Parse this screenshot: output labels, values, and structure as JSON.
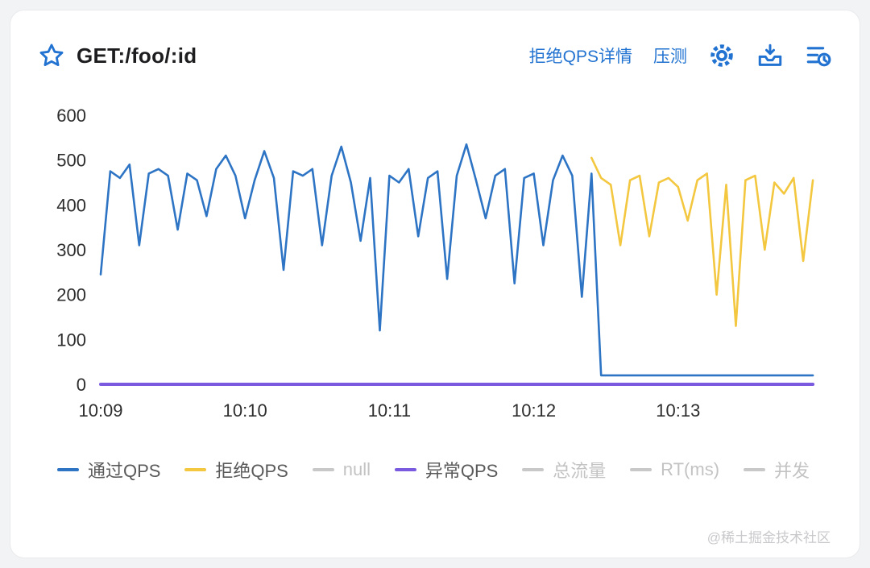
{
  "header": {
    "title": "GET:/foo/:id",
    "actions": [
      {
        "key": "reject-qps-detail",
        "label": "拒绝QPS详情"
      },
      {
        "key": "stress-test",
        "label": "压测"
      }
    ]
  },
  "legend": {
    "items": [
      {
        "key": "pass-qps",
        "label": "通过QPS",
        "color": "#2e74c4",
        "active": true
      },
      {
        "key": "reject-qps",
        "label": "拒绝QPS",
        "color": "#f3c73f",
        "active": true
      },
      {
        "key": "null",
        "label": "null",
        "color": "#c8c8c8",
        "active": false
      },
      {
        "key": "exception-qps",
        "label": "异常QPS",
        "color": "#7a5be0",
        "active": true
      },
      {
        "key": "total-flow",
        "label": "总流量",
        "color": "#c8c8c8",
        "active": false
      },
      {
        "key": "rt",
        "label": "RT(ms)",
        "color": "#c8c8c8",
        "active": false
      },
      {
        "key": "concurrency",
        "label": "并发",
        "color": "#c8c8c8",
        "active": false
      }
    ]
  },
  "watermark": "@稀土掘金技术社区",
  "chart_data": {
    "type": "line",
    "title": "GET:/foo/:id QPS monitor",
    "x_unit": "seconds since 10:09:00",
    "xlim": [
      0,
      300
    ],
    "ylim": [
      0,
      600
    ],
    "yticks": [
      0,
      100,
      200,
      300,
      400,
      500,
      600
    ],
    "xticks": [
      {
        "t": 0,
        "label": "10:09"
      },
      {
        "t": 60,
        "label": "10:10"
      },
      {
        "t": 120,
        "label": "10:11"
      },
      {
        "t": 180,
        "label": "10:12"
      },
      {
        "t": 240,
        "label": "10:13"
      }
    ],
    "grid": false,
    "legend_position": "bottom",
    "x": [
      0,
      4,
      8,
      12,
      16,
      20,
      24,
      28,
      32,
      36,
      40,
      44,
      48,
      52,
      56,
      60,
      64,
      68,
      72,
      76,
      80,
      84,
      88,
      92,
      96,
      100,
      104,
      108,
      112,
      116,
      120,
      124,
      128,
      132,
      136,
      140,
      144,
      148,
      152,
      156,
      160,
      164,
      168,
      172,
      176,
      180,
      184,
      188,
      192,
      196,
      200,
      204,
      208,
      212,
      216,
      220,
      224,
      228,
      232,
      236,
      240,
      244,
      248,
      252,
      256,
      260,
      264,
      268,
      272,
      276,
      280,
      284,
      288,
      292,
      296
    ],
    "series": [
      {
        "key": "pass-qps",
        "name": "通过QPS",
        "color": "#2e74c4",
        "values": [
          245,
          475,
          460,
          490,
          310,
          470,
          480,
          465,
          345,
          470,
          455,
          375,
          480,
          510,
          465,
          370,
          455,
          520,
          460,
          255,
          475,
          465,
          480,
          310,
          465,
          530,
          450,
          320,
          460,
          120,
          465,
          450,
          480,
          330,
          460,
          475,
          235,
          465,
          535,
          455,
          370,
          465,
          480,
          225,
          460,
          470,
          310,
          455,
          510,
          465,
          195,
          470,
          20,
          20,
          20,
          20,
          20,
          20,
          20,
          20,
          20,
          20,
          20,
          20,
          20,
          20,
          20,
          20,
          20,
          20,
          20,
          20,
          20,
          20,
          20
        ]
      },
      {
        "key": "reject-qps",
        "name": "拒绝QPS",
        "color": "#f3c73f",
        "values": [
          null,
          null,
          null,
          null,
          null,
          null,
          null,
          null,
          null,
          null,
          null,
          null,
          null,
          null,
          null,
          null,
          null,
          null,
          null,
          null,
          null,
          null,
          null,
          null,
          null,
          null,
          null,
          null,
          null,
          null,
          null,
          null,
          null,
          null,
          null,
          null,
          null,
          null,
          null,
          null,
          null,
          null,
          null,
          null,
          null,
          null,
          null,
          null,
          null,
          null,
          null,
          505,
          460,
          445,
          310,
          455,
          465,
          330,
          450,
          460,
          440,
          365,
          455,
          470,
          200,
          445,
          130,
          455,
          465,
          300,
          450,
          425,
          460,
          275,
          455
        ]
      },
      {
        "key": "exception-qps",
        "name": "异常QPS",
        "color": "#7a5be0",
        "values": [
          0,
          0,
          0,
          0,
          0,
          0,
          0,
          0,
          0,
          0,
          0,
          0,
          0,
          0,
          0,
          0,
          0,
          0,
          0,
          0,
          0,
          0,
          0,
          0,
          0,
          0,
          0,
          0,
          0,
          0,
          0,
          0,
          0,
          0,
          0,
          0,
          0,
          0,
          0,
          0,
          0,
          0,
          0,
          0,
          0,
          0,
          0,
          0,
          0,
          0,
          0,
          0,
          0,
          0,
          0,
          0,
          0,
          0,
          0,
          0,
          0,
          0,
          0,
          0,
          0,
          0,
          0,
          0,
          0,
          0,
          0,
          0,
          0,
          0,
          0
        ]
      }
    ]
  }
}
